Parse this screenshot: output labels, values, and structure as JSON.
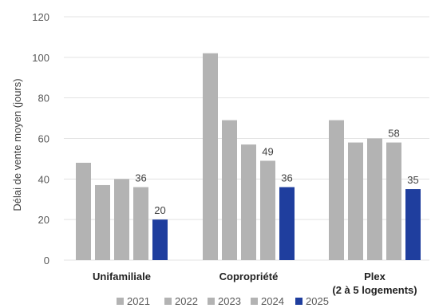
{
  "chart_data": {
    "type": "bar",
    "ylabel": "Délai de vente moyen (jours)",
    "ylim": [
      0,
      120
    ],
    "yticks": [
      0,
      20,
      40,
      60,
      80,
      100,
      120
    ],
    "grid": true,
    "legend_position": "bottom",
    "categories": [
      {
        "lines": [
          "Unifamiliale"
        ]
      },
      {
        "lines": [
          "Copropriété"
        ]
      },
      {
        "lines": [
          "Plex",
          "(2 à 5 logements)"
        ]
      }
    ],
    "series": [
      {
        "name": "2021",
        "color": "#b3b3b3",
        "values": [
          48,
          102,
          69
        ]
      },
      {
        "name": "2022",
        "color": "#b3b3b3",
        "values": [
          37,
          69,
          58
        ]
      },
      {
        "name": "2023",
        "color": "#b3b3b3",
        "values": [
          40,
          57,
          60
        ]
      },
      {
        "name": "2024",
        "color": "#b3b3b3",
        "values": [
          36,
          49,
          58
        ],
        "labels": [
          "36",
          "49",
          "58"
        ]
      },
      {
        "name": "2025",
        "color": "#1f3e9e",
        "values": [
          20,
          36,
          35
        ],
        "labels": [
          "20",
          "36",
          "35"
        ]
      }
    ]
  }
}
